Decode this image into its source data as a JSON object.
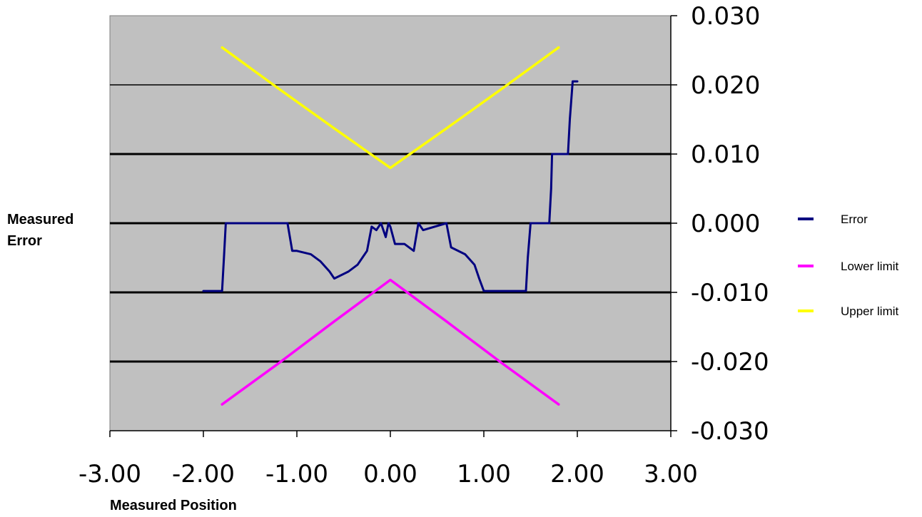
{
  "chart_data": {
    "type": "line",
    "title": "",
    "xlabel": "Measured Position",
    "ylabel": "Measured Error",
    "xlim": [
      -3,
      3
    ],
    "ylim": [
      -0.03,
      0.03
    ],
    "x_ticks": [
      -3,
      -2,
      -1,
      0,
      1,
      2,
      3
    ],
    "x_tick_labels": [
      "-3.00",
      "-2.00",
      "-1.00",
      "0.00",
      "1.00",
      "2.00",
      "3.00"
    ],
    "y_ticks": [
      0.03,
      0.02,
      0.01,
      0,
      -0.01,
      -0.02,
      -0.03
    ],
    "y_tick_labels": [
      "0.030",
      "0.020",
      "0.010",
      "0.000",
      "-0.010",
      "-0.020",
      "-0.030"
    ],
    "y_axis_side": "right",
    "grid": true,
    "plot_background": "#c0c0c0",
    "legend_position": "right",
    "series": [
      {
        "name": "Error",
        "color": "#000080",
        "x": [
          -2.0,
          -1.8,
          -1.78,
          -1.76,
          -1.1,
          -1.05,
          -1.0,
          -0.85,
          -0.75,
          -0.65,
          -0.6,
          -0.45,
          -0.35,
          -0.25,
          -0.2,
          -0.15,
          -0.1,
          -0.05,
          -0.02,
          0.0,
          0.05,
          0.15,
          0.25,
          0.3,
          0.35,
          0.6,
          0.65,
          0.8,
          0.9,
          0.95,
          1.0,
          1.45,
          1.47,
          1.5,
          1.7,
          1.72,
          1.73,
          1.9,
          1.92,
          1.95,
          2.0
        ],
        "y": [
          -0.0098,
          -0.0098,
          -0.005,
          0.0,
          0.0,
          -0.004,
          -0.004,
          -0.0045,
          -0.0055,
          -0.007,
          -0.008,
          -0.007,
          -0.006,
          -0.004,
          -0.0005,
          -0.001,
          0.0,
          -0.002,
          0.0,
          -0.0005,
          -0.003,
          -0.003,
          -0.004,
          0.0,
          -0.001,
          0.0,
          -0.0035,
          -0.0045,
          -0.006,
          -0.008,
          -0.0098,
          -0.0098,
          -0.005,
          0.0,
          0.0,
          0.005,
          0.01,
          0.01,
          0.015,
          0.0205,
          0.0205
        ]
      },
      {
        "name": "Lower limit",
        "color": "#ff00ff",
        "x": [
          -1.8,
          -1.2,
          -0.6,
          0.0,
          0.6,
          1.2,
          1.8
        ],
        "y": [
          -0.0262,
          -0.0203,
          -0.0142,
          -0.0082,
          -0.0142,
          -0.0203,
          -0.0262
        ]
      },
      {
        "name": "Upper limit",
        "color": "#ffff00",
        "x": [
          -1.8,
          -1.2,
          -0.6,
          0.0,
          0.6,
          1.2,
          1.8
        ],
        "y": [
          0.0254,
          0.0195,
          0.0137,
          0.008,
          0.0137,
          0.0195,
          0.0254
        ]
      }
    ],
    "legend_entries": [
      "Error",
      "Lower limit",
      "Upper limit"
    ]
  }
}
